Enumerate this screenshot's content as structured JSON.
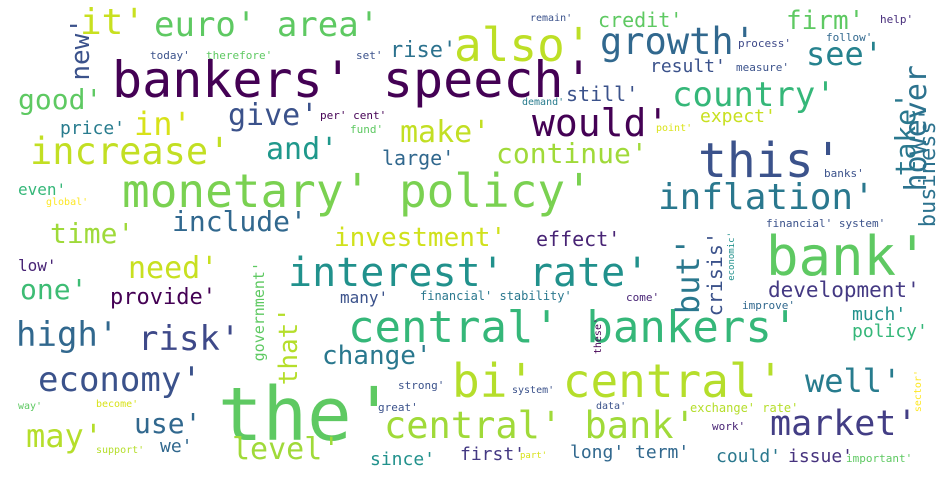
{
  "words": [
    {
      "text": "the'",
      "color": "#5ec962"
    },
    {
      "text": "bankers' speech'",
      "color": "#440154"
    },
    {
      "text": "monetary' policy'",
      "color": "#7ad151"
    },
    {
      "text": "central' bankers'",
      "color": "#35b779"
    },
    {
      "text": "bank'",
      "color": "#5ec962"
    },
    {
      "text": "this'",
      "color": "#3b528b"
    },
    {
      "text": "bi' central'",
      "color": "#b5de2b"
    },
    {
      "text": "also'",
      "color": "#bddf26"
    },
    {
      "text": "central' bank'",
      "color": "#a0da39"
    },
    {
      "text": "interest' rate'",
      "color": "#21918c"
    },
    {
      "text": "increase'",
      "color": "#c2df23"
    },
    {
      "text": "growth'",
      "color": "#31688e"
    },
    {
      "text": "euro' area'",
      "color": "#5ec962"
    },
    {
      "text": "it'",
      "color": "#c8e020"
    },
    {
      "text": "inflation'",
      "color": "#2a788e"
    },
    {
      "text": "would'",
      "color": "#440154"
    },
    {
      "text": "economy'",
      "color": "#3b528b"
    },
    {
      "text": "country'",
      "color": "#35b779"
    },
    {
      "text": "market'",
      "color": "#433e85"
    },
    {
      "text": "risk'",
      "color": "#3e4989"
    },
    {
      "text": "high'",
      "color": "#31688e"
    },
    {
      "text": "well'",
      "color": "#287c8e"
    },
    {
      "text": "however",
      "color": "#2c728e"
    },
    {
      "text": "see'",
      "color": "#26828e"
    },
    {
      "text": "make'",
      "color": "#c2df23"
    },
    {
      "text": "continue'",
      "color": "#a0da39"
    },
    {
      "text": "but'",
      "color": "#2a788e"
    },
    {
      "text": "change'",
      "color": "#2a788e"
    },
    {
      "text": "may'",
      "color": "#b5de2b"
    },
    {
      "text": "level'",
      "color": "#a0da39"
    },
    {
      "text": "give'",
      "color": "#3b528b"
    },
    {
      "text": "and'",
      "color": "#1f988b"
    },
    {
      "text": "include'",
      "color": "#31688e"
    },
    {
      "text": "time'",
      "color": "#9fda3a"
    },
    {
      "text": "investment'",
      "color": "#d0e11c"
    },
    {
      "text": "need'",
      "color": "#c8e020"
    },
    {
      "text": "one'",
      "color": "#3dbc74"
    },
    {
      "text": "in'",
      "color": "#d8e219"
    },
    {
      "text": "good'",
      "color": "#5ec962"
    },
    {
      "text": "new'",
      "color": "#3b528b"
    },
    {
      "text": "firm'",
      "color": "#5ec962"
    },
    {
      "text": "take'",
      "color": "#2a788e"
    },
    {
      "text": "provide'",
      "color": "#440154"
    },
    {
      "text": "use'",
      "color": "#31688e"
    },
    {
      "text": "that'",
      "color": "#b5de2b"
    },
    {
      "text": "crisis'",
      "color": "#3b528b"
    },
    {
      "text": "business'",
      "color": "#2c728e"
    },
    {
      "text": "development'",
      "color": "#443983"
    },
    {
      "text": "effect'",
      "color": "#482475"
    },
    {
      "text": "credit'",
      "color": "#5ec962"
    },
    {
      "text": "rise'",
      "color": "#2c728e"
    },
    {
      "text": "result'",
      "color": "#3b528b"
    },
    {
      "text": "large'",
      "color": "#31688e"
    },
    {
      "text": "expect'",
      "color": "#c8e020"
    },
    {
      "text": "price'",
      "color": "#287c8e"
    },
    {
      "text": "still'",
      "color": "#3b528b"
    },
    {
      "text": "much'",
      "color": "#21918c"
    },
    {
      "text": "policy'",
      "color": "#35b779"
    },
    {
      "text": "government'",
      "color": "#5ec962"
    },
    {
      "text": "since'",
      "color": "#21918c"
    },
    {
      "text": "first'",
      "color": "#443983"
    },
    {
      "text": "long' term'",
      "color": "#31688e"
    },
    {
      "text": "could'",
      "color": "#2a788e"
    },
    {
      "text": "issue'",
      "color": "#46327e"
    },
    {
      "text": "we'",
      "color": "#31688e"
    },
    {
      "text": "many'",
      "color": "#3b528b"
    },
    {
      "text": "even'",
      "color": "#35b779"
    },
    {
      "text": "low'",
      "color": "#482475"
    },
    {
      "text": "financial' stability'",
      "color": "#2a788e"
    },
    {
      "text": "financial' system'",
      "color": "#3b528b"
    },
    {
      "text": "per' cent'",
      "color": "#440154"
    },
    {
      "text": "fund'",
      "color": "#5ec962"
    },
    {
      "text": "demand'",
      "color": "#287c8e"
    },
    {
      "text": "point'",
      "color": "#dae319"
    },
    {
      "text": "today'",
      "color": "#3b528b"
    },
    {
      "text": "therefore'",
      "color": "#5ec962"
    },
    {
      "text": "set'",
      "color": "#3b528b"
    },
    {
      "text": "remain'",
      "color": "#3b528b"
    },
    {
      "text": "help'",
      "color": "#472d7b"
    },
    {
      "text": "follow'",
      "color": "#31688e"
    },
    {
      "text": "process'",
      "color": "#3e4989"
    },
    {
      "text": "measure'",
      "color": "#3b528b"
    },
    {
      "text": "banks'",
      "color": "#3b528b"
    },
    {
      "text": "global'",
      "color": "#fde725"
    },
    {
      "text": "economic'",
      "color": "#21918c"
    },
    {
      "text": "come'",
      "color": "#482475"
    },
    {
      "text": "improve'",
      "color": "#31688e"
    },
    {
      "text": "these'",
      "color": "#440154"
    },
    {
      "text": "strong'",
      "color": "#3b528b"
    },
    {
      "text": "system'",
      "color": "#3b528b"
    },
    {
      "text": "great'",
      "color": "#3b528b"
    },
    {
      "text": "data'",
      "color": "#3b528b"
    },
    {
      "text": "exchange' rate'",
      "color": "#b5de2b"
    },
    {
      "text": "work'",
      "color": "#482475"
    },
    {
      "text": "sector'",
      "color": "#fde725"
    },
    {
      "text": "way'",
      "color": "#5ec962"
    },
    {
      "text": "become'",
      "color": "#d8e219"
    },
    {
      "text": "support'",
      "color": "#b5de2b"
    },
    {
      "text": "part'",
      "color": "#d8e219"
    },
    {
      "text": "important'",
      "color": "#5ec962"
    }
  ]
}
